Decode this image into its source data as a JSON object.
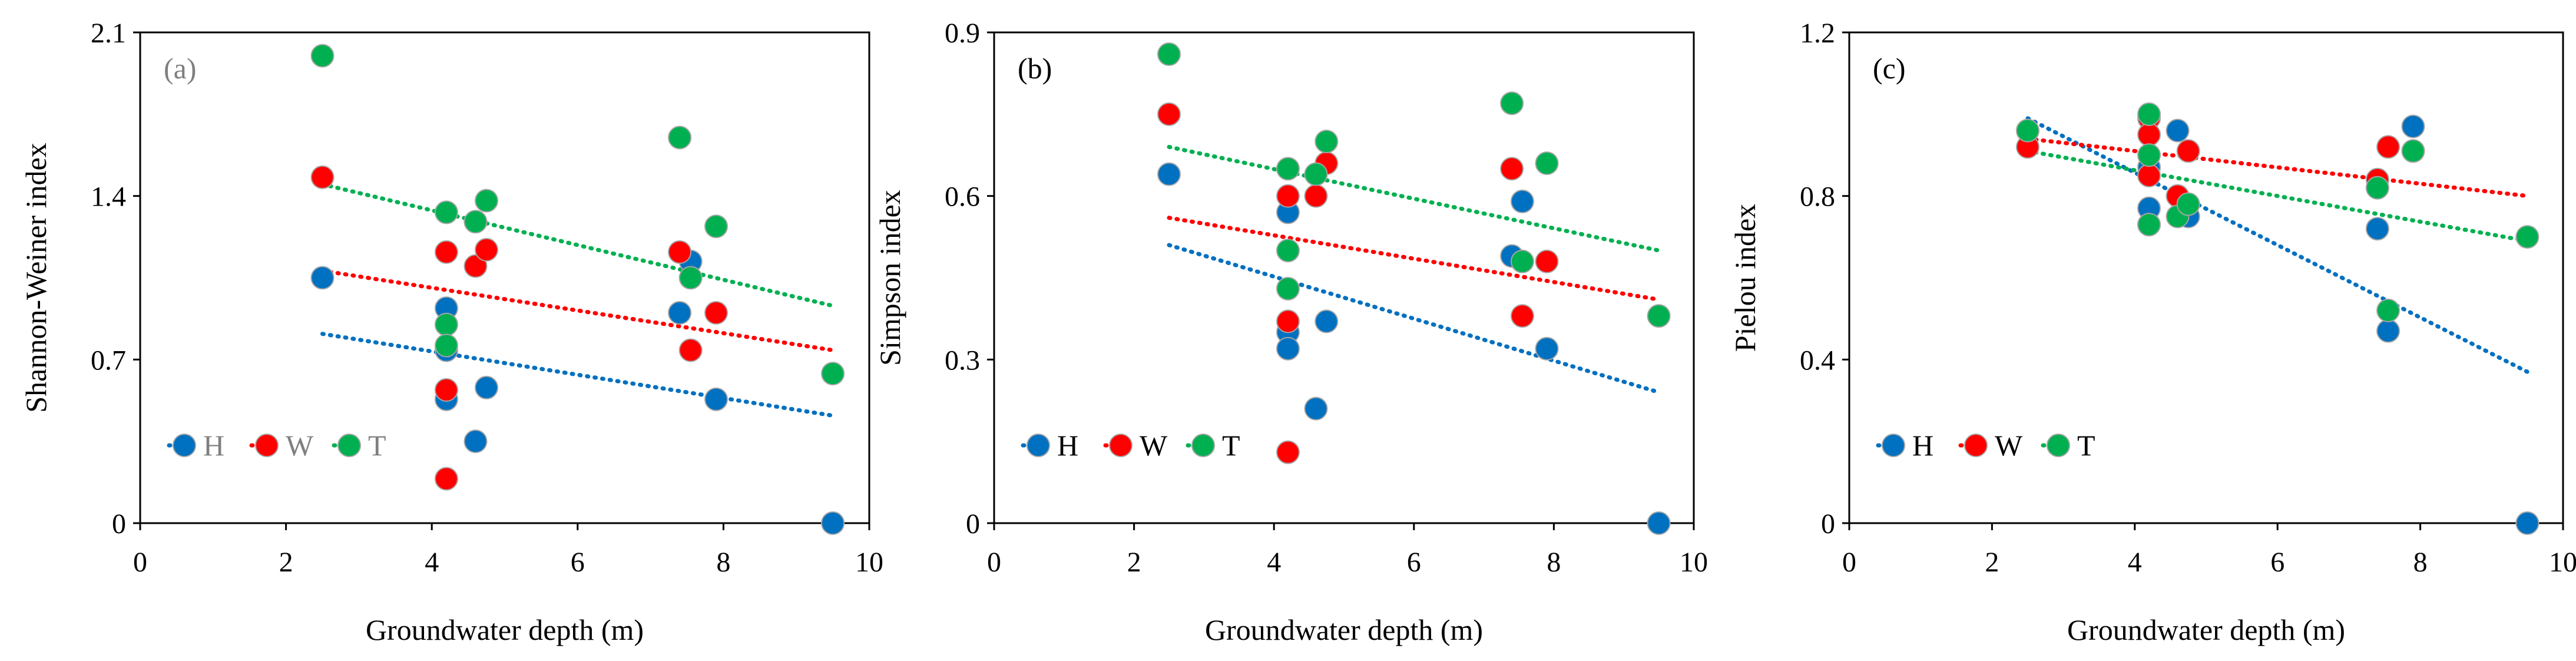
{
  "figure": {
    "description_free": true
  },
  "colors": {
    "H": "#0070C0",
    "W": "#FF0000",
    "T": "#00B050",
    "marker_edge": "#A5A5A5"
  },
  "chart_data": [
    {
      "type": "scatter",
      "panel_label": "(a)",
      "panel_label_color": "#7F7F7F",
      "legend_text_color": "#7F7F7F",
      "xlabel": "Groundwater depth (m)",
      "ylabel": "Shannon-Weiner index",
      "xlim": [
        0,
        10
      ],
      "ylim": [
        0,
        2.1
      ],
      "xticks": [
        0,
        2,
        4,
        6,
        8,
        10
      ],
      "xtick_labels": [
        "0",
        "2",
        "4",
        "6",
        "8",
        "10"
      ],
      "yticks": [
        0,
        0.7,
        1.4,
        2.1
      ],
      "ytick_labels": [
        "0",
        "0.7",
        "1.4",
        "2.1"
      ],
      "legend": [
        "H",
        "W",
        "T"
      ],
      "legend_placement": "lower-left",
      "series": [
        {
          "name": "H",
          "points": [
            [
              2.5,
              1.05
            ],
            [
              4.2,
              0.92
            ],
            [
              4.2,
              0.74
            ],
            [
              4.2,
              0.53
            ],
            [
              4.6,
              0.35
            ],
            [
              4.75,
              0.58
            ],
            [
              7.4,
              0.9
            ],
            [
              7.55,
              1.12
            ],
            [
              7.9,
              0.53
            ],
            [
              9.5,
              0.0
            ]
          ],
          "trend": [
            [
              2.5,
              0.81
            ],
            [
              9.5,
              0.46
            ]
          ]
        },
        {
          "name": "W",
          "points": [
            [
              2.5,
              1.48
            ],
            [
              4.2,
              1.16
            ],
            [
              4.2,
              0.57
            ],
            [
              4.2,
              0.19
            ],
            [
              4.6,
              1.1
            ],
            [
              4.75,
              1.17
            ],
            [
              7.4,
              1.16
            ],
            [
              7.55,
              0.74
            ],
            [
              7.9,
              0.9
            ]
          ],
          "trend": [
            [
              2.5,
              1.08
            ],
            [
              9.5,
              0.74
            ]
          ]
        },
        {
          "name": "T",
          "points": [
            [
              2.5,
              2.0
            ],
            [
              4.2,
              1.33
            ],
            [
              4.2,
              0.85
            ],
            [
              4.2,
              0.76
            ],
            [
              4.6,
              1.29
            ],
            [
              4.75,
              1.38
            ],
            [
              7.4,
              1.65
            ],
            [
              7.55,
              1.05
            ],
            [
              7.9,
              1.27
            ],
            [
              9.5,
              0.64
            ]
          ],
          "trend": [
            [
              2.5,
              1.45
            ],
            [
              9.5,
              0.93
            ]
          ]
        }
      ]
    },
    {
      "type": "scatter",
      "panel_label": "(b)",
      "panel_label_color": "#000000",
      "legend_text_color": "#000000",
      "xlabel": "Groundwater depth (m)",
      "ylabel": "Simpson index",
      "xlim": [
        0,
        10
      ],
      "ylim": [
        0,
        0.9
      ],
      "xticks": [
        0,
        2,
        4,
        6,
        8,
        10
      ],
      "xtick_labels": [
        "0",
        "2",
        "4",
        "6",
        "8",
        "10"
      ],
      "yticks": [
        0,
        0.3,
        0.6,
        0.9
      ],
      "ytick_labels": [
        "0",
        "0.3",
        "0.6",
        "0.9"
      ],
      "legend": [
        "H",
        "W",
        "T"
      ],
      "legend_placement": "lower-left",
      "series": [
        {
          "name": "H",
          "points": [
            [
              2.5,
              0.64
            ],
            [
              4.2,
              0.57
            ],
            [
              4.2,
              0.35
            ],
            [
              4.2,
              0.32
            ],
            [
              4.6,
              0.21
            ],
            [
              4.75,
              0.37
            ],
            [
              7.4,
              0.49
            ],
            [
              7.55,
              0.59
            ],
            [
              7.9,
              0.32
            ],
            [
              9.5,
              0.0
            ]
          ],
          "trend": [
            [
              2.5,
              0.51
            ],
            [
              9.5,
              0.24
            ]
          ]
        },
        {
          "name": "W",
          "points": [
            [
              2.5,
              0.75
            ],
            [
              4.2,
              0.6
            ],
            [
              4.2,
              0.37
            ],
            [
              4.2,
              0.13
            ],
            [
              4.6,
              0.6
            ],
            [
              4.75,
              0.66
            ],
            [
              7.4,
              0.65
            ],
            [
              7.55,
              0.38
            ],
            [
              7.9,
              0.48
            ]
          ],
          "trend": [
            [
              2.5,
              0.56
            ],
            [
              9.5,
              0.41
            ]
          ]
        },
        {
          "name": "T",
          "points": [
            [
              2.5,
              0.86
            ],
            [
              4.2,
              0.65
            ],
            [
              4.2,
              0.5
            ],
            [
              4.2,
              0.43
            ],
            [
              4.6,
              0.64
            ],
            [
              4.75,
              0.7
            ],
            [
              7.4,
              0.77
            ],
            [
              7.55,
              0.48
            ],
            [
              7.9,
              0.66
            ],
            [
              9.5,
              0.38
            ]
          ],
          "trend": [
            [
              2.5,
              0.69
            ],
            [
              9.5,
              0.5
            ]
          ]
        }
      ]
    },
    {
      "type": "scatter",
      "panel_label": "(c)",
      "panel_label_color": "#000000",
      "legend_text_color": "#000000",
      "xlabel": "Groundwater depth (m)",
      "ylabel": "Pielou index",
      "xlim": [
        0,
        10
      ],
      "ylim": [
        0,
        1.2
      ],
      "xticks": [
        0,
        2,
        4,
        6,
        8,
        10
      ],
      "xtick_labels": [
        "0",
        "2",
        "4",
        "6",
        "8",
        "10"
      ],
      "yticks": [
        0,
        0.4,
        0.8,
        1.2
      ],
      "ytick_labels": [
        "0",
        "0.4",
        "0.8",
        "1.2"
      ],
      "legend": [
        "H",
        "W",
        "T"
      ],
      "legend_placement": "lower-left",
      "series": [
        {
          "name": "H",
          "points": [
            [
              2.5,
              0.96
            ],
            [
              4.2,
              0.87
            ],
            [
              4.2,
              0.77
            ],
            [
              4.2,
              0.73
            ],
            [
              4.6,
              0.96
            ],
            [
              4.75,
              0.75
            ],
            [
              7.4,
              0.72
            ],
            [
              7.55,
              0.47
            ],
            [
              7.9,
              0.97
            ],
            [
              9.5,
              0.0
            ]
          ],
          "trend": [
            [
              2.5,
              0.99
            ],
            [
              9.5,
              0.37
            ]
          ]
        },
        {
          "name": "W",
          "points": [
            [
              2.5,
              0.92
            ],
            [
              4.2,
              0.99
            ],
            [
              4.2,
              0.95
            ],
            [
              4.2,
              0.85
            ],
            [
              4.6,
              0.8
            ],
            [
              4.75,
              0.91
            ],
            [
              7.4,
              0.84
            ],
            [
              7.55,
              0.92
            ],
            [
              7.9,
              0.91
            ]
          ],
          "trend": [
            [
              2.5,
              0.94
            ],
            [
              9.5,
              0.8
            ]
          ]
        },
        {
          "name": "T",
          "points": [
            [
              2.5,
              0.96
            ],
            [
              4.2,
              1.0
            ],
            [
              4.2,
              0.9
            ],
            [
              4.2,
              0.73
            ],
            [
              4.6,
              0.75
            ],
            [
              4.75,
              0.78
            ],
            [
              7.4,
              0.82
            ],
            [
              7.55,
              0.52
            ],
            [
              7.9,
              0.91
            ],
            [
              9.5,
              0.7
            ]
          ],
          "trend": [
            [
              2.5,
              0.91
            ],
            [
              9.5,
              0.69
            ]
          ]
        }
      ]
    }
  ]
}
